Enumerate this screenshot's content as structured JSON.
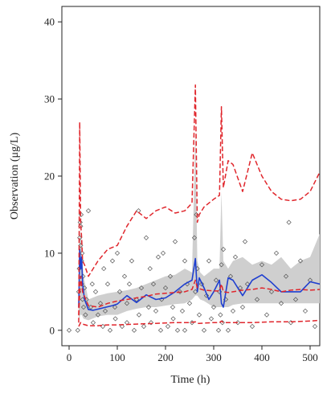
{
  "chart_data": {
    "type": "line",
    "title": "",
    "xlabel": "Time (h)",
    "ylabel": "Observation (μg/L)",
    "xlim": [
      -15,
      520
    ],
    "ylim": [
      -2,
      42
    ],
    "xticks": [
      0,
      100,
      200,
      300,
      400,
      500
    ],
    "xtick_labels": [
      "0",
      "100",
      "200",
      "300",
      "400",
      "500"
    ],
    "yticks": [
      0,
      10,
      20,
      30,
      40
    ],
    "ytick_labels": [
      "0",
      "10",
      "20",
      "30",
      "40"
    ],
    "grid": false,
    "legend": "none",
    "colors": {
      "median": "#1f3fd0",
      "percentile": "#e0262c",
      "band": "#cfcfcf",
      "points": "#555555"
    },
    "prediction_interval_band": {
      "x": [
        20,
        23,
        26,
        30,
        40,
        60,
        80,
        100,
        120,
        140,
        160,
        180,
        200,
        220,
        240,
        255,
        262,
        266,
        272,
        280,
        300,
        312,
        316,
        320,
        330,
        340,
        360,
        380,
        400,
        420,
        440,
        460,
        480,
        500,
        520
      ],
      "upper": [
        10,
        13,
        11,
        7,
        4,
        4.5,
        4.8,
        5,
        5.2,
        5.5,
        6,
        6.5,
        7,
        7.2,
        8,
        7.5,
        26,
        9,
        7.5,
        7,
        8,
        8,
        18,
        9,
        8,
        9,
        9.5,
        8.5,
        9,
        8.5,
        9.5,
        8,
        9,
        9.5,
        12.5
      ],
      "lower": [
        1,
        2,
        2,
        1.5,
        1.3,
        1.8,
        2,
        2,
        2.5,
        2.8,
        3,
        3,
        3.2,
        3.4,
        3.5,
        4,
        4.5,
        4.5,
        4,
        3.8,
        3,
        3,
        3,
        3,
        3,
        3.3,
        3.5,
        3.5,
        3.5,
        3.5,
        3.5,
        3.5,
        3.5,
        3.5,
        3.5
      ]
    },
    "series": [
      {
        "style": "solid",
        "x": [
          20,
          22,
          24,
          26,
          28,
          32,
          40,
          50,
          70,
          90,
          100,
          120,
          140,
          160,
          180,
          200,
          220,
          240,
          255,
          262,
          266,
          270,
          280,
          290,
          300,
          312,
          316,
          320,
          330,
          340,
          360,
          380,
          400,
          420,
          440,
          460,
          480,
          500,
          520
        ],
        "y": [
          3,
          10.5,
          8,
          9.5,
          6,
          4,
          2.7,
          2.6,
          2.9,
          3.2,
          3.4,
          4.5,
          3.6,
          4.6,
          4,
          4.2,
          5,
          6,
          6.5,
          9.3,
          5,
          6.8,
          5.5,
          4,
          5,
          6.5,
          3.5,
          3,
          6.8,
          6.5,
          4.5,
          6.5,
          7.2,
          6.2,
          5,
          5,
          5,
          6.3,
          6
        ],
        "color": "#1f3fd0"
      },
      {
        "style": "dashed",
        "x": [
          20,
          22,
          24,
          26,
          28,
          32,
          40,
          60,
          80,
          100,
          120,
          140,
          160,
          180,
          200,
          220,
          240,
          255,
          262,
          266,
          270,
          280,
          300,
          312,
          316,
          320,
          330,
          340,
          360,
          380,
          400,
          420,
          440,
          460,
          480,
          500,
          520
        ],
        "y": [
          1,
          27,
          14,
          12,
          9,
          8.5,
          7,
          9,
          10.5,
          11,
          13.5,
          15.5,
          14.5,
          15.5,
          16,
          15.2,
          15.5,
          16.5,
          31.8,
          14,
          15,
          16,
          17,
          17.5,
          29,
          18.5,
          22,
          21.5,
          18,
          23,
          20,
          18,
          17,
          16.8,
          17,
          18,
          20.5
        ],
        "color": "#e0262c"
      },
      {
        "style": "dashed",
        "x": [
          20,
          24,
          28,
          40,
          60,
          80,
          100,
          120,
          140,
          160,
          180,
          200,
          220,
          240,
          255,
          262,
          266,
          270,
          280,
          300,
          312,
          316,
          320,
          330,
          340,
          360,
          380,
          400,
          420,
          440,
          460,
          480,
          500,
          520
        ],
        "y": [
          2,
          7,
          5,
          3.2,
          3,
          3.5,
          3.8,
          4,
          4.2,
          4.4,
          4.7,
          4.8,
          4.9,
          5,
          5.3,
          6.5,
          5.5,
          5.4,
          5.2,
          5.1,
          5.1,
          6,
          5,
          4.9,
          5,
          5.2,
          5.3,
          5.5,
          5.3,
          5,
          5.2,
          5.3,
          5.2,
          5.3
        ],
        "color": "#e0262c"
      },
      {
        "style": "dashed",
        "x": [
          20,
          24,
          28,
          40,
          60,
          80,
          100,
          140,
          180,
          220,
          250,
          262,
          266,
          270,
          300,
          312,
          316,
          320,
          340,
          380,
          420,
          460,
          500,
          520
        ],
        "y": [
          0.5,
          1,
          0.8,
          0.6,
          0.6,
          0.7,
          0.7,
          0.8,
          0.9,
          1,
          1,
          1.1,
          0.9,
          0.9,
          1,
          1,
          1.2,
          1,
          1,
          1,
          1.1,
          1.1,
          1.2,
          1.3
        ],
        "color": "#e0262c"
      }
    ],
    "observations": {
      "x": [
        0,
        18,
        20,
        21,
        22,
        23,
        24,
        24,
        25,
        26,
        26,
        27,
        28,
        29,
        30,
        32,
        34,
        36,
        40,
        45,
        48,
        50,
        55,
        60,
        65,
        70,
        72,
        75,
        80,
        85,
        90,
        95,
        96,
        100,
        105,
        110,
        115,
        120,
        120,
        125,
        130,
        135,
        140,
        144,
        145,
        150,
        155,
        160,
        165,
        168,
        170,
        175,
        180,
        185,
        190,
        192,
        195,
        200,
        205,
        210,
        215,
        216,
        220,
        225,
        230,
        235,
        240,
        240,
        245,
        250,
        255,
        260,
        262,
        264,
        266,
        270,
        275,
        280,
        285,
        290,
        295,
        300,
        305,
        310,
        312,
        314,
        316,
        318,
        320,
        325,
        330,
        335,
        340,
        345,
        350,
        355,
        360,
        365,
        370,
        380,
        390,
        400,
        410,
        420,
        430,
        440,
        450,
        456,
        460,
        470,
        480,
        490,
        500,
        510
      ],
      "y": [
        0,
        0,
        5,
        8,
        12,
        14,
        13.5,
        11,
        15,
        9,
        6,
        10,
        4,
        7,
        3,
        5.5,
        2,
        4,
        15.5,
        3,
        6,
        1,
        5,
        2,
        3.5,
        0.5,
        8,
        2.5,
        6,
        0,
        9,
        3,
        1.5,
        10,
        5,
        0.5,
        7,
        3.5,
        1,
        6,
        9,
        0,
        4,
        15.5,
        2,
        5.5,
        0.5,
        12,
        3,
        8,
        1,
        6,
        2.5,
        9.5,
        0,
        4,
        10,
        5.5,
        0.5,
        7,
        3,
        1.5,
        11.5,
        0,
        5,
        2.5,
        9,
        0,
        6,
        3.5,
        1,
        12,
        5,
        15,
        8,
        2,
        6,
        0,
        4.5,
        9,
        1.5,
        3,
        6.5,
        0,
        5,
        2,
        8.5,
        1,
        10.5,
        4,
        0,
        7,
        2.5,
        9.5,
        1,
        5.5,
        3,
        11.5,
        6,
        0.5,
        4,
        8.5,
        2,
        5,
        10,
        3.5,
        7,
        14,
        1,
        4,
        9,
        2.5,
        6.5,
        0.5
      ]
    }
  }
}
